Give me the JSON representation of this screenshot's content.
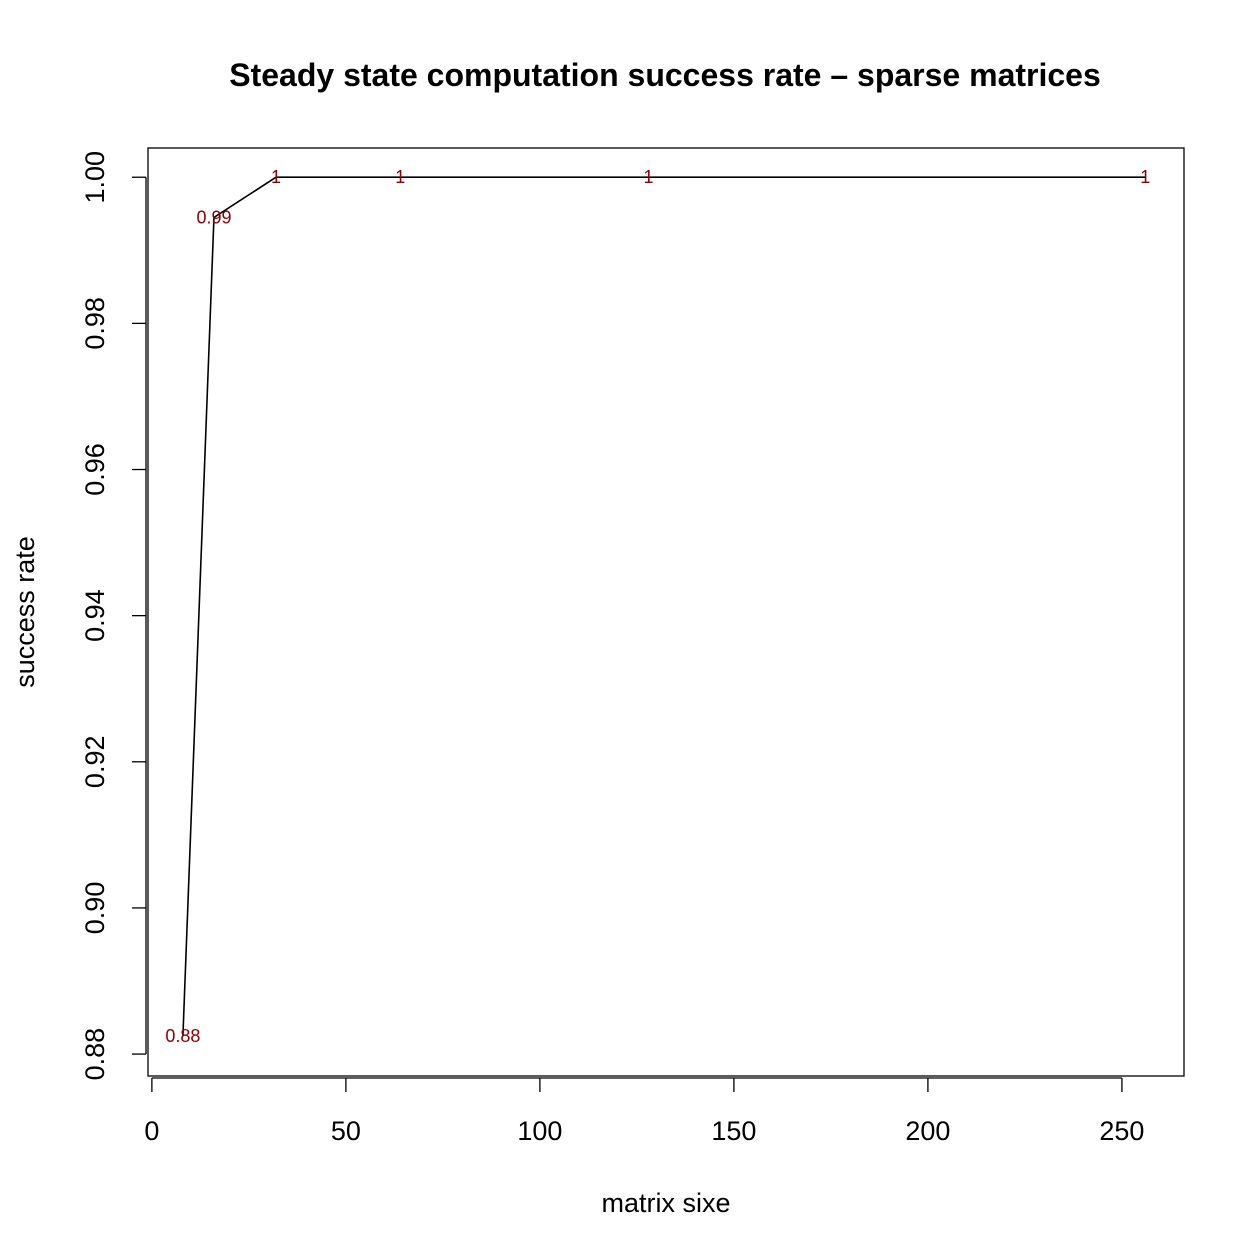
{
  "chart_data": {
    "type": "line",
    "title": "Steady state computation success rate – sparse matrices",
    "xlabel": "matrix sixe",
    "ylabel": "success rate",
    "xlim": [
      -1,
      266
    ],
    "ylim": [
      0.877,
      1.004
    ],
    "x_ticks": [
      0,
      50,
      100,
      150,
      200,
      250
    ],
    "y_ticks": [
      0.88,
      0.9,
      0.92,
      0.94,
      0.96,
      0.98,
      1.0
    ],
    "y_tick_labels": [
      "0.88",
      "0.90",
      "0.92",
      "0.94",
      "0.96",
      "0.98",
      "1.00"
    ],
    "grid": false,
    "label_color": "#8b0000",
    "line_color": "#000000",
    "points": [
      {
        "x": 8,
        "y": 0.8825,
        "label": "0.88"
      },
      {
        "x": 16,
        "y": 0.9945,
        "label": "0.99"
      },
      {
        "x": 32,
        "y": 1.0,
        "label": "1"
      },
      {
        "x": 64,
        "y": 1.0,
        "label": "1"
      },
      {
        "x": 128,
        "y": 1.0,
        "label": "1"
      },
      {
        "x": 256,
        "y": 1.0,
        "label": "1"
      }
    ]
  }
}
